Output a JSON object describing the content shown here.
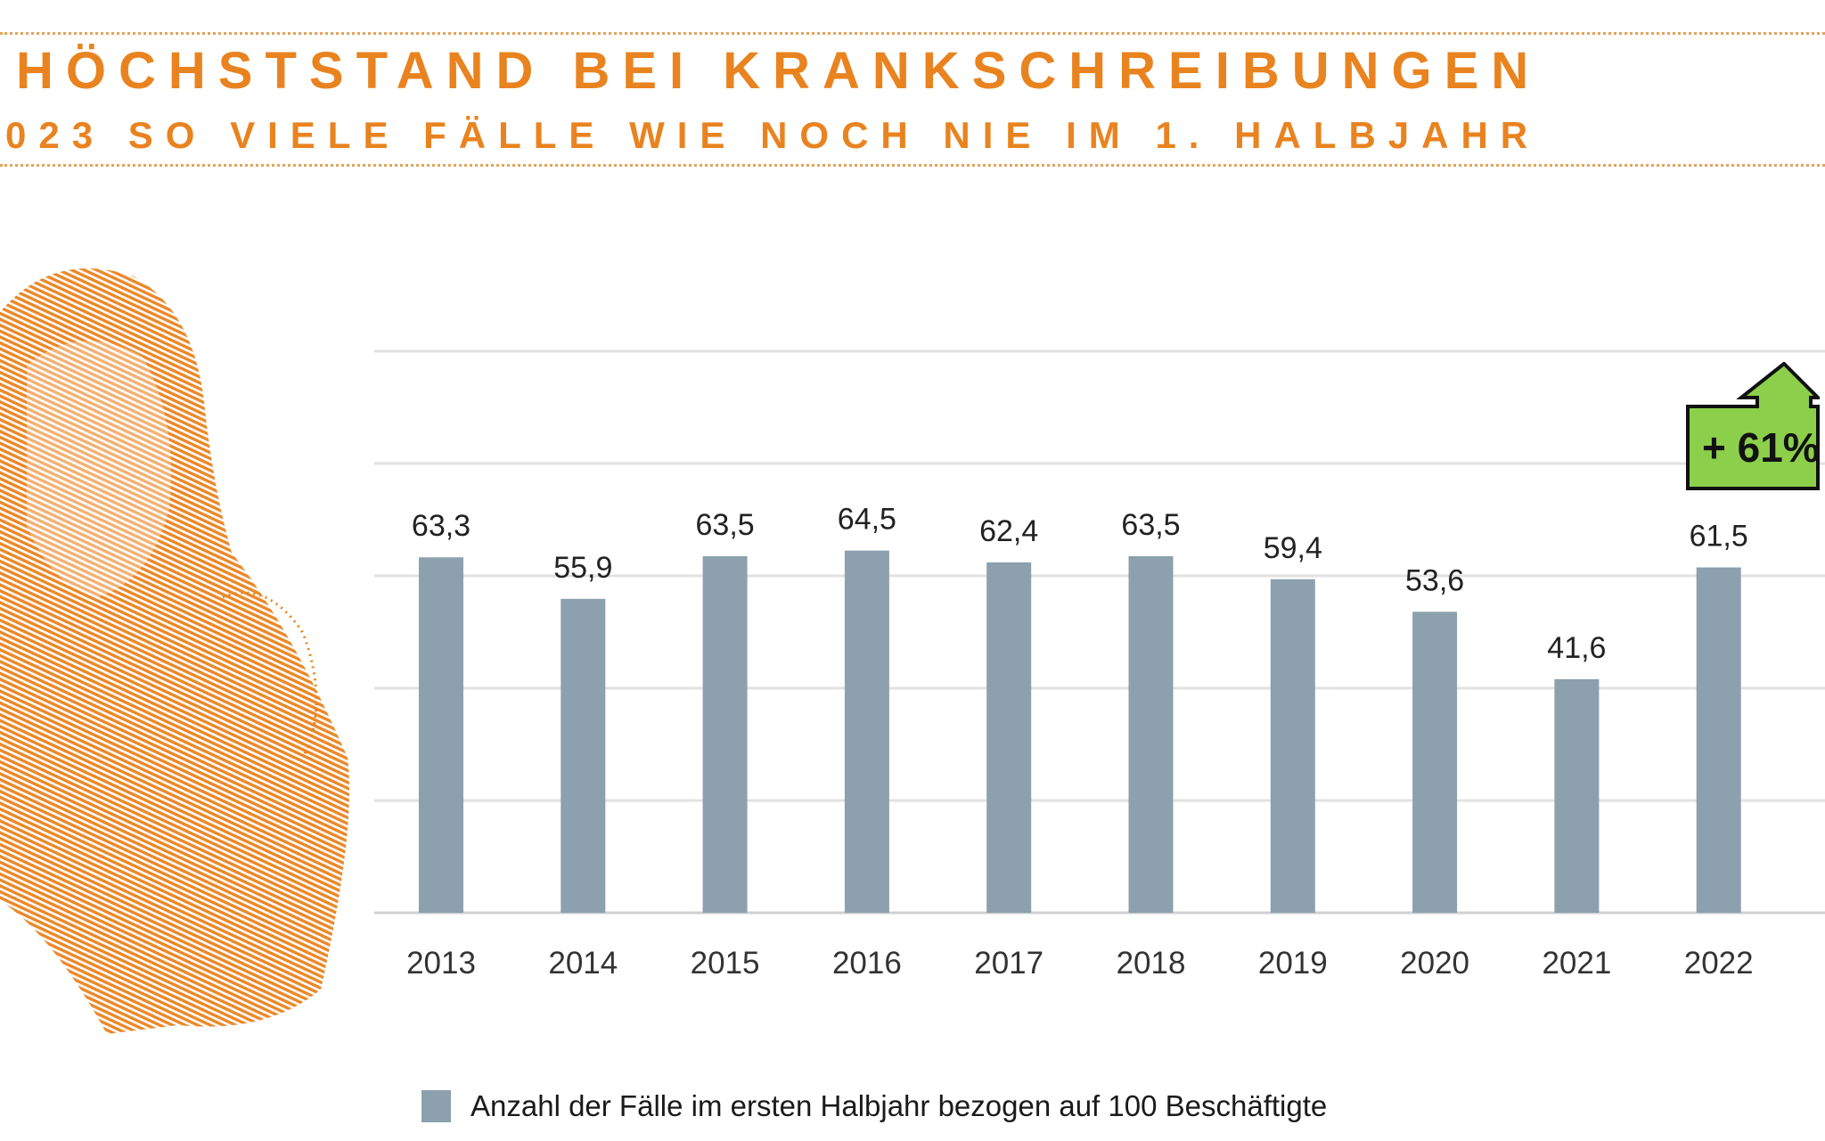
{
  "header": {
    "title": "HÖCHSTSTAND BEI KRANKSCHREIBUNGEN",
    "subtitle": "023 SO VIELE FÄLLE WIE NOCH NIE IM 1. HALBJAHR"
  },
  "badge": {
    "label": "+ 61%",
    "color": "#8ccf4a"
  },
  "chart_data": {
    "type": "bar",
    "title": "HÖCHSTSTAND BEI KRANKSCHREIBUNGEN",
    "categories": [
      "2013",
      "2014",
      "2015",
      "2016",
      "2017",
      "2018",
      "2019",
      "2020",
      "2021",
      "2022"
    ],
    "values": [
      63.3,
      55.9,
      63.5,
      64.5,
      62.4,
      63.5,
      59.4,
      53.6,
      41.6,
      61.5
    ],
    "value_labels": [
      "63,3",
      "55,9",
      "63,5",
      "64,5",
      "62,4",
      "63,5",
      "59,4",
      "53,6",
      "41,6",
      "61,5"
    ],
    "ylim": [
      0,
      100
    ],
    "grid": true,
    "xlabel": "",
    "ylabel": "",
    "bar_color": "#8ca0ad",
    "legend": {
      "placement": "bottom",
      "entries": [
        "Anzahl der Fälle im ersten Halbjahr bezogen auf 100 Beschäftigte"
      ]
    }
  }
}
